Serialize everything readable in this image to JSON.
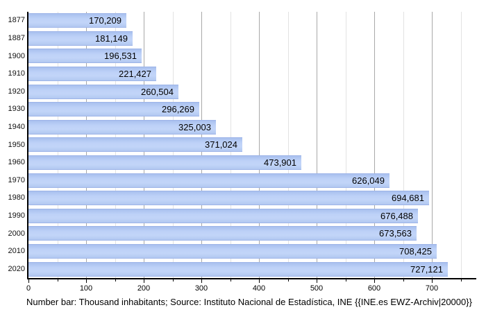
{
  "chart_data": {
    "type": "bar",
    "orientation": "horizontal",
    "title": "",
    "xlabel": "",
    "ylabel": "",
    "categories": [
      "1877",
      "1887",
      "1900",
      "1910",
      "1920",
      "1930",
      "1940",
      "1950",
      "1960",
      "1970",
      "1980",
      "1990",
      "2000",
      "2010",
      "2020"
    ],
    "values": [
      170209,
      181149,
      196531,
      221427,
      260504,
      296269,
      325003,
      371024,
      473901,
      626049,
      694681,
      676488,
      673563,
      708425,
      727121
    ],
    "value_labels": [
      "170,209",
      "181,149",
      "196,531",
      "221,427",
      "260,504",
      "296,269",
      "325,003",
      "371,024",
      "473,901",
      "626,049",
      "694,681",
      "676,488",
      "673,563",
      "708,425",
      "727,121"
    ],
    "x_axis_unit": "thousand inhabitants",
    "xlim": [
      0,
      775
    ],
    "x_major_ticks": [
      0,
      100,
      200,
      300,
      400,
      500,
      600,
      700
    ],
    "x_minor_tick_step": 50,
    "grid": "vertical",
    "legend": "none",
    "bar_color": "#b8ccf2",
    "bar_edge_color": "#9db4e8",
    "major_grid_color": "#a8a8a8",
    "minor_grid_color": "#e2e2e2",
    "axis_color": "#000000",
    "caption": "Number bar: Thousand inhabitants; Source: Instituto Nacional de Estadística, INE {{INE.es EWZ-Archiv|20000}}"
  }
}
